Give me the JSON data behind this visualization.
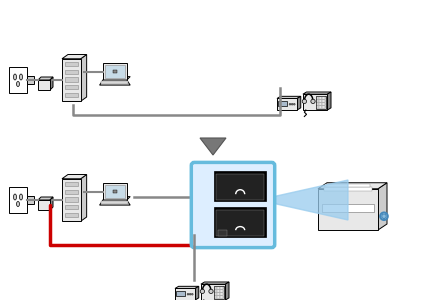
{
  "bg_color": "#ffffff",
  "gray_line": "#888888",
  "red_line": "#cc0000",
  "black": "#000000",
  "dark_gray": "#555555",
  "med_gray": "#888888",
  "light_gray": "#cccccc",
  "lighter_gray": "#e8e8e8",
  "box_border": "#66bbdd",
  "box_fill": "#ddeeff",
  "blue_beam": "#99ccee",
  "arrow_fill": "#777777",
  "fig_w": 4.25,
  "fig_h": 3.0,
  "dpi": 100
}
